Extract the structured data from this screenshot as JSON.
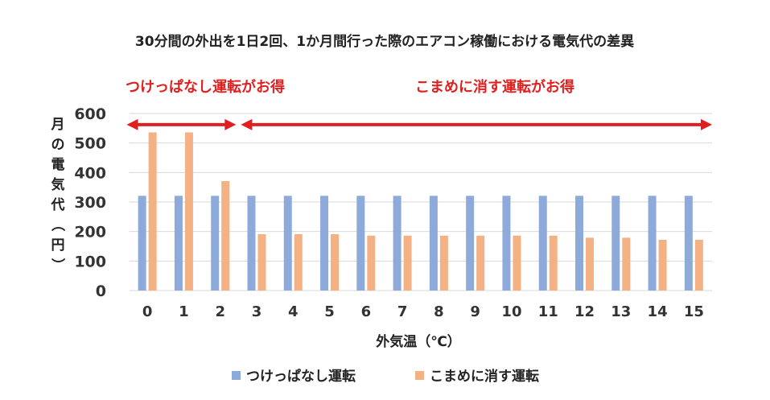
{
  "chart_data": {
    "type": "bar",
    "title": "30分間の外出を1日2回、1か月間行った際のエアコン稼働における電気代の差異",
    "xlabel": "外気温（℃）",
    "ylabel": "月の電気代（円）",
    "ylim": [
      0,
      600
    ],
    "yticks": [
      "0",
      "100",
      "200",
      "300",
      "400",
      "500",
      "600"
    ],
    "grid": true,
    "legend_position": "bottom",
    "categories": [
      "0",
      "1",
      "2",
      "3",
      "4",
      "5",
      "6",
      "7",
      "8",
      "9",
      "10",
      "11",
      "12",
      "13",
      "14",
      "15"
    ],
    "series": [
      {
        "name": "つけっぱなし運転",
        "color": "#8eaadb",
        "values": [
          321,
          321,
          321,
          321,
          321,
          321,
          321,
          321,
          321,
          321,
          321,
          321,
          321,
          321,
          321,
          321
        ]
      },
      {
        "name": "こまめに消す運転",
        "color": "#f4b183",
        "values": [
          536,
          536,
          371,
          191,
          191,
          191,
          186,
          186,
          186,
          186,
          186,
          186,
          179,
          179,
          172,
          172
        ]
      }
    ],
    "annotations": [
      {
        "text": "つけっぱなし運転がお得",
        "from": "0",
        "to": "2",
        "color": "#e02020"
      },
      {
        "text": "こまめに消す運転がお得",
        "from": "3",
        "to": "15",
        "color": "#e02020"
      }
    ]
  }
}
